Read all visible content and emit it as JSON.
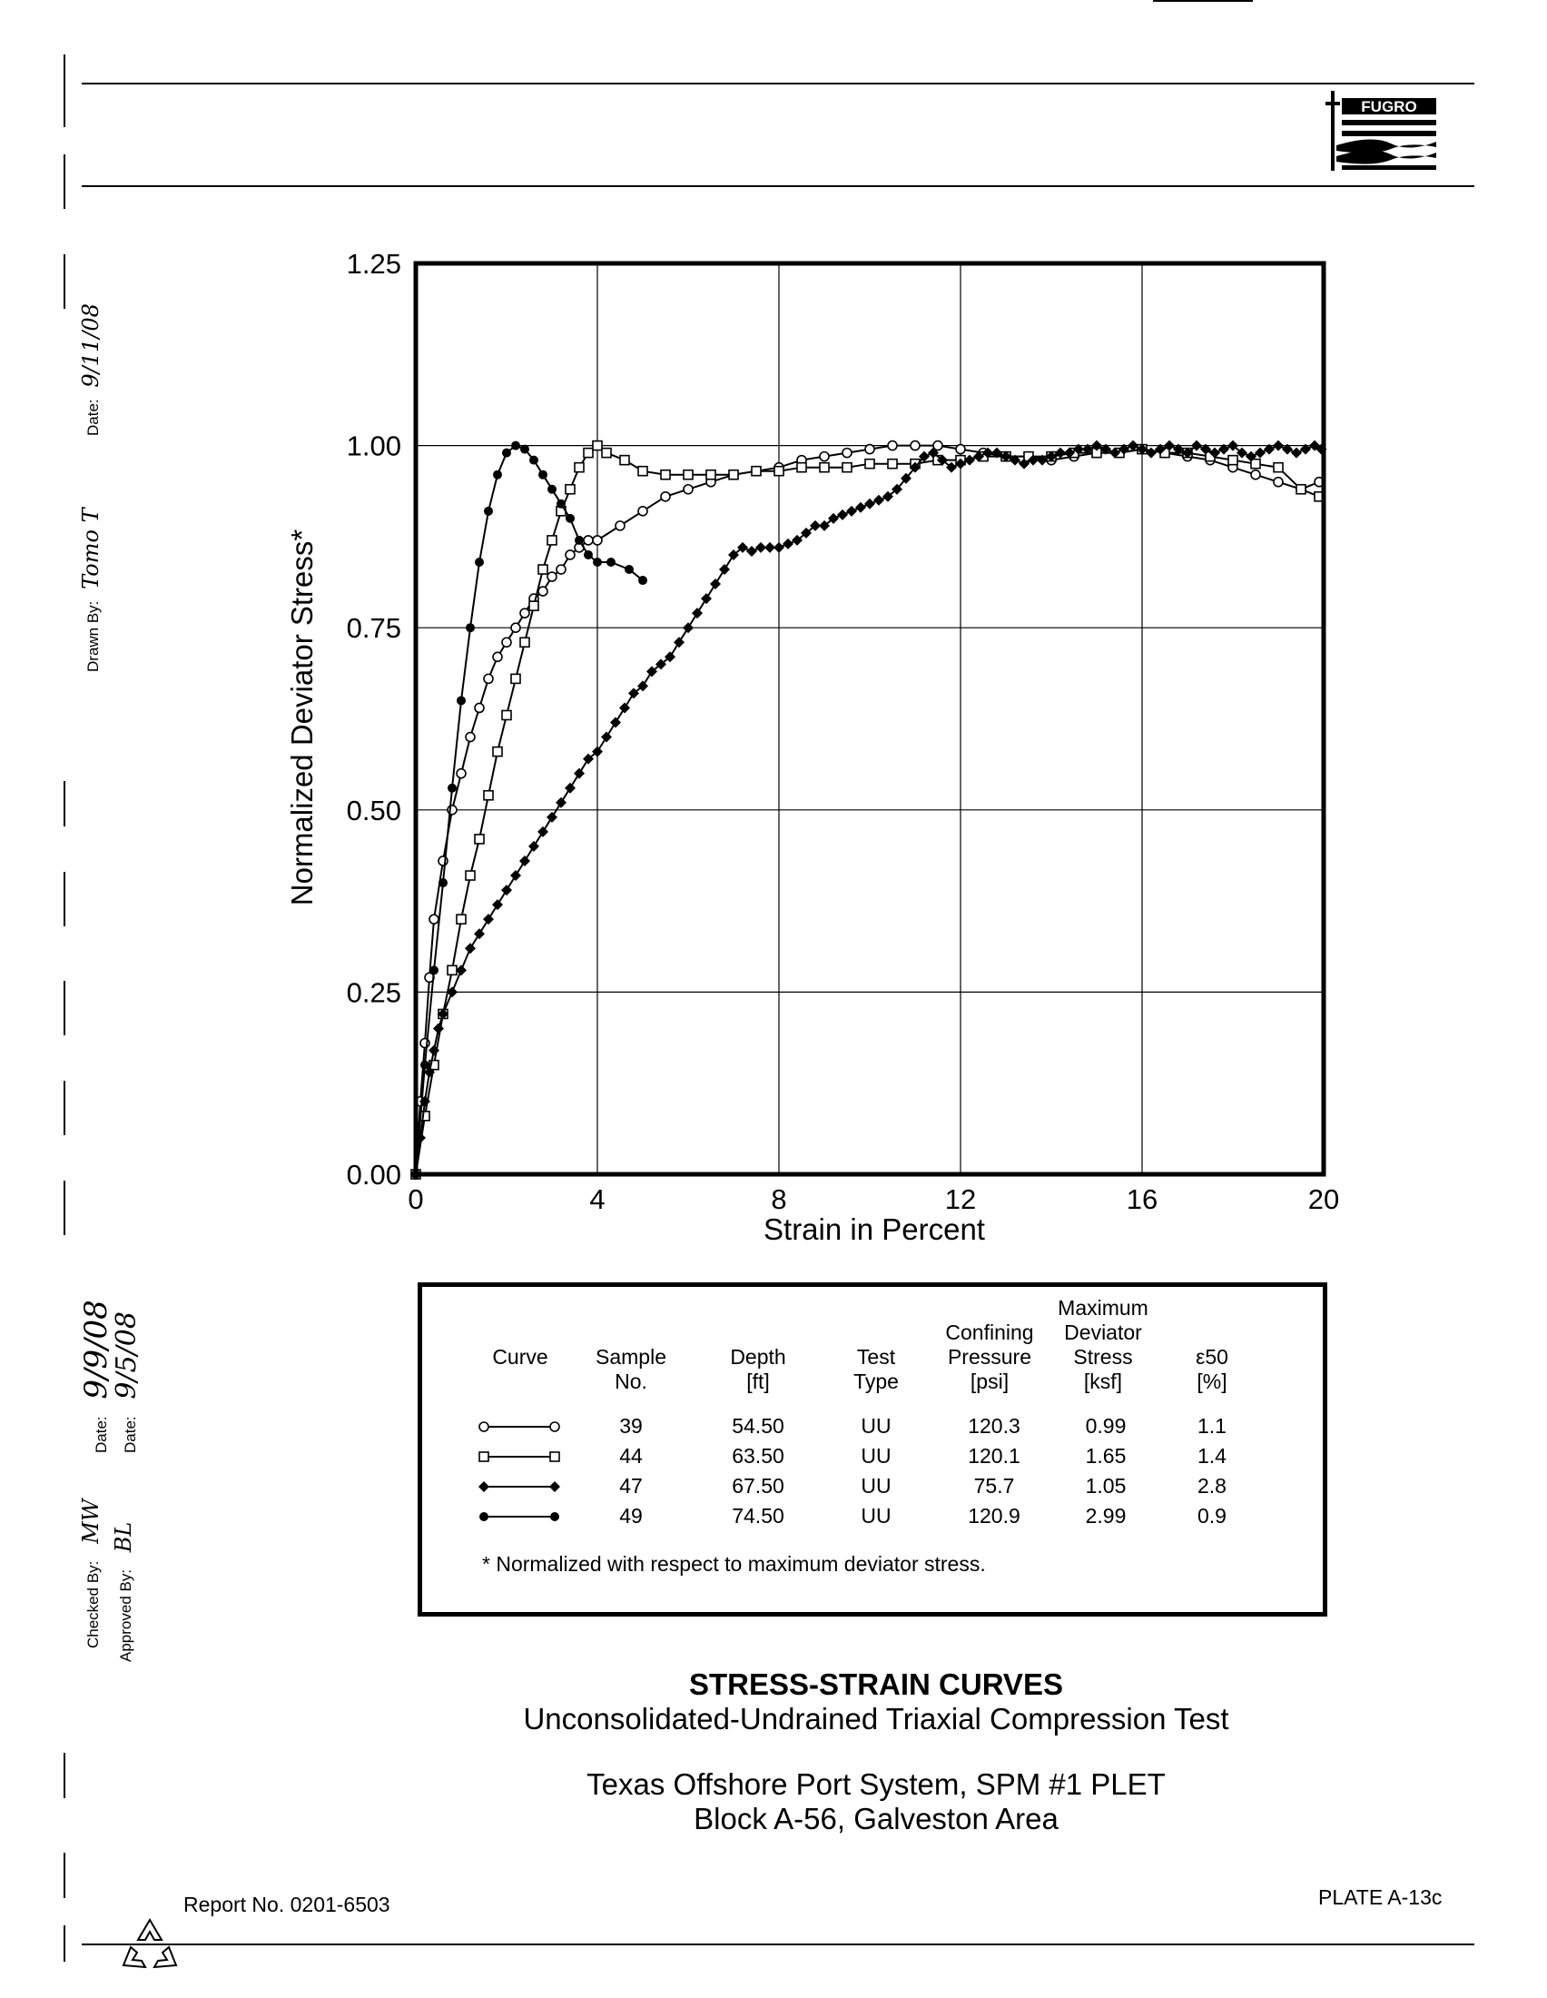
{
  "header": {
    "logo_text": "FUGRO"
  },
  "side_labels": {
    "drawn_by_label": "Drawn By:",
    "drawn_by_value": "Tomo T",
    "drawn_date_label": "Date:",
    "drawn_date_value": "9/11/08",
    "checked_by_label": "Checked By:",
    "checked_by_value": "MW",
    "checked_date_label": "Date:",
    "checked_date_value": "9/9/08",
    "approved_by_label": "Approved By:",
    "approved_by_value": "BL",
    "approved_date_label": "Date:",
    "approved_date_value": "9/5/08"
  },
  "chart_data": {
    "type": "line",
    "xlabel": "Strain in Percent",
    "ylabel": "Normalized Deviator Stress*",
    "xlim": [
      0,
      20
    ],
    "ylim": [
      0,
      1.25
    ],
    "xticks": [
      "0",
      "4",
      "8",
      "12",
      "16",
      "20"
    ],
    "yticks": [
      "0.00",
      "0.25",
      "0.50",
      "0.75",
      "1.00",
      "1.25"
    ],
    "grid": true,
    "series": [
      {
        "name": "39",
        "marker": "open-circle",
        "x": [
          0,
          0.1,
          0.2,
          0.3,
          0.4,
          0.6,
          0.8,
          1.0,
          1.2,
          1.4,
          1.6,
          1.8,
          2.0,
          2.2,
          2.4,
          2.6,
          2.8,
          3.0,
          3.2,
          3.4,
          3.6,
          3.8,
          4.0,
          4.5,
          5.0,
          5.5,
          6.0,
          6.5,
          7.0,
          7.5,
          8.0,
          8.5,
          9.0,
          9.5,
          10.0,
          10.5,
          11.0,
          11.5,
          12.0,
          12.5,
          13.0,
          13.5,
          14.0,
          14.5,
          15.0,
          15.5,
          16.0,
          16.5,
          17.0,
          17.5,
          18.0,
          18.5,
          19.0,
          19.5,
          19.9
        ],
        "y": [
          0,
          0.1,
          0.18,
          0.27,
          0.35,
          0.43,
          0.5,
          0.55,
          0.6,
          0.64,
          0.68,
          0.71,
          0.73,
          0.75,
          0.77,
          0.79,
          0.8,
          0.82,
          0.83,
          0.85,
          0.86,
          0.87,
          0.87,
          0.89,
          0.91,
          0.93,
          0.94,
          0.95,
          0.96,
          0.965,
          0.97,
          0.98,
          0.985,
          0.99,
          0.995,
          1.0,
          1.0,
          1.0,
          0.995,
          0.99,
          0.985,
          0.985,
          0.98,
          0.985,
          0.99,
          0.99,
          0.995,
          0.99,
          0.985,
          0.98,
          0.97,
          0.96,
          0.95,
          0.94,
          0.95
        ]
      },
      {
        "name": "44",
        "marker": "open-square",
        "x": [
          0,
          0.2,
          0.4,
          0.6,
          0.8,
          1.0,
          1.2,
          1.4,
          1.6,
          1.8,
          2.0,
          2.2,
          2.4,
          2.6,
          2.8,
          3.0,
          3.2,
          3.4,
          3.6,
          3.8,
          4.0,
          4.2,
          4.6,
          5.0,
          5.5,
          6.0,
          6.5,
          7.0,
          7.5,
          8.0,
          8.5,
          9.0,
          9.5,
          10.0,
          10.5,
          11.0,
          11.5,
          12.0,
          12.5,
          13.0,
          13.5,
          14.0,
          14.5,
          15.0,
          15.5,
          16.0,
          16.5,
          17.0,
          17.5,
          18.0,
          18.5,
          19.0,
          19.5,
          19.9
        ],
        "y": [
          0,
          0.08,
          0.15,
          0.22,
          0.28,
          0.35,
          0.41,
          0.46,
          0.52,
          0.58,
          0.63,
          0.68,
          0.73,
          0.78,
          0.83,
          0.87,
          0.91,
          0.94,
          0.97,
          0.99,
          1.0,
          0.99,
          0.98,
          0.965,
          0.96,
          0.96,
          0.96,
          0.96,
          0.965,
          0.965,
          0.97,
          0.97,
          0.97,
          0.975,
          0.975,
          0.975,
          0.98,
          0.98,
          0.985,
          0.985,
          0.985,
          0.985,
          0.99,
          0.99,
          0.99,
          0.995,
          0.99,
          0.99,
          0.985,
          0.98,
          0.975,
          0.97,
          0.94,
          0.93
        ]
      },
      {
        "name": "47",
        "marker": "filled-diamond",
        "x": [
          0,
          0.1,
          0.2,
          0.3,
          0.4,
          0.5,
          0.6,
          0.8,
          1.0,
          1.2,
          1.4,
          1.6,
          1.8,
          2.0,
          2.2,
          2.4,
          2.6,
          2.8,
          3.0,
          3.2,
          3.4,
          3.6,
          3.8,
          4.0,
          4.2,
          4.4,
          4.6,
          4.8,
          5.0,
          5.2,
          5.4,
          5.6,
          5.8,
          6.0,
          6.2,
          6.4,
          6.6,
          6.8,
          7.0,
          7.2,
          7.4,
          7.6,
          7.8,
          8.0,
          8.2,
          8.4,
          8.6,
          8.8,
          9.0,
          9.2,
          9.4,
          9.6,
          9.8,
          10.0,
          10.2,
          10.4,
          10.6,
          10.8,
          11.0,
          11.2,
          11.4,
          11.6,
          11.8,
          12.0,
          12.2,
          12.4,
          12.6,
          12.8,
          13.0,
          13.2,
          13.4,
          13.6,
          13.8,
          14.0,
          14.2,
          14.4,
          14.6,
          14.8,
          15.0,
          15.2,
          15.4,
          15.6,
          15.8,
          16.0,
          16.2,
          16.4,
          16.6,
          16.8,
          17.0,
          17.2,
          17.4,
          17.6,
          17.8,
          18.0,
          18.2,
          18.4,
          18.6,
          18.8,
          19.0,
          19.2,
          19.4,
          19.6,
          19.8,
          19.95
        ],
        "y": [
          0,
          0.05,
          0.1,
          0.14,
          0.17,
          0.2,
          0.22,
          0.25,
          0.28,
          0.31,
          0.33,
          0.35,
          0.37,
          0.39,
          0.41,
          0.43,
          0.45,
          0.47,
          0.49,
          0.51,
          0.53,
          0.55,
          0.57,
          0.58,
          0.6,
          0.62,
          0.64,
          0.66,
          0.67,
          0.69,
          0.7,
          0.71,
          0.73,
          0.75,
          0.77,
          0.79,
          0.81,
          0.83,
          0.85,
          0.86,
          0.855,
          0.86,
          0.86,
          0.86,
          0.865,
          0.87,
          0.88,
          0.89,
          0.89,
          0.9,
          0.905,
          0.91,
          0.915,
          0.92,
          0.925,
          0.93,
          0.94,
          0.955,
          0.97,
          0.985,
          0.99,
          0.98,
          0.97,
          0.975,
          0.98,
          0.985,
          0.99,
          0.99,
          0.985,
          0.98,
          0.975,
          0.98,
          0.98,
          0.985,
          0.99,
          0.99,
          0.995,
          0.995,
          1.0,
          0.995,
          0.99,
          0.995,
          1.0,
          0.995,
          0.99,
          0.995,
          1.0,
          0.995,
          0.99,
          1.0,
          0.995,
          0.99,
          0.995,
          1.0,
          0.99,
          0.985,
          0.99,
          0.995,
          1.0,
          0.995,
          0.99,
          0.995,
          1.0,
          0.995
        ]
      },
      {
        "name": "49",
        "marker": "filled-circle",
        "x": [
          0,
          0.2,
          0.4,
          0.6,
          0.8,
          1.0,
          1.2,
          1.4,
          1.6,
          1.8,
          2.0,
          2.2,
          2.4,
          2.6,
          2.8,
          3.0,
          3.2,
          3.4,
          3.6,
          3.8,
          4.0,
          4.3,
          4.7,
          5.0
        ],
        "y": [
          0,
          0.15,
          0.28,
          0.4,
          0.53,
          0.65,
          0.75,
          0.84,
          0.91,
          0.96,
          0.99,
          1.0,
          0.995,
          0.98,
          0.96,
          0.94,
          0.92,
          0.9,
          0.87,
          0.85,
          0.84,
          0.84,
          0.83,
          0.815
        ]
      }
    ]
  },
  "legend_table": {
    "headers": {
      "curve": "Curve",
      "sample_line1": "Sample",
      "sample_line2": "No.",
      "depth_line1": "Depth",
      "depth_line2": "[ft]",
      "test_line1": "Test",
      "test_line2": "Type",
      "conf_line1": "Confining",
      "conf_line2": "Pressure",
      "conf_line3": "[psi]",
      "max_line1": "Maximum",
      "max_line2": "Deviator",
      "max_line3": "Stress",
      "max_line4": "[ksf]",
      "eps_symbol": "ε50",
      "eps_unit": "[%]"
    },
    "rows": [
      {
        "sample": "39",
        "depth": "54.50",
        "type": "UU",
        "pressure": "120.3",
        "stress": "0.99",
        "eps": "1.1"
      },
      {
        "sample": "44",
        "depth": "63.50",
        "type": "UU",
        "pressure": "120.1",
        "stress": "1.65",
        "eps": "1.4"
      },
      {
        "sample": "47",
        "depth": "67.50",
        "type": "UU",
        "pressure": "75.7",
        "stress": "1.05",
        "eps": "2.8"
      },
      {
        "sample": "49",
        "depth": "74.50",
        "type": "UU",
        "pressure": "120.9",
        "stress": "2.99",
        "eps": "0.9"
      }
    ],
    "footnote": "* Normalized with respect to maximum deviator stress."
  },
  "title_block": {
    "title": "STRESS-STRAIN CURVES",
    "subtitle": "Unconsolidated-Undrained Triaxial Compression Test",
    "project_line1": "Texas Offshore Port System, SPM #1 PLET",
    "project_line2": "Block A-56, Galveston Area"
  },
  "footer": {
    "report_no": "Report No. 0201-6503",
    "plate": "PLATE A-13c"
  }
}
